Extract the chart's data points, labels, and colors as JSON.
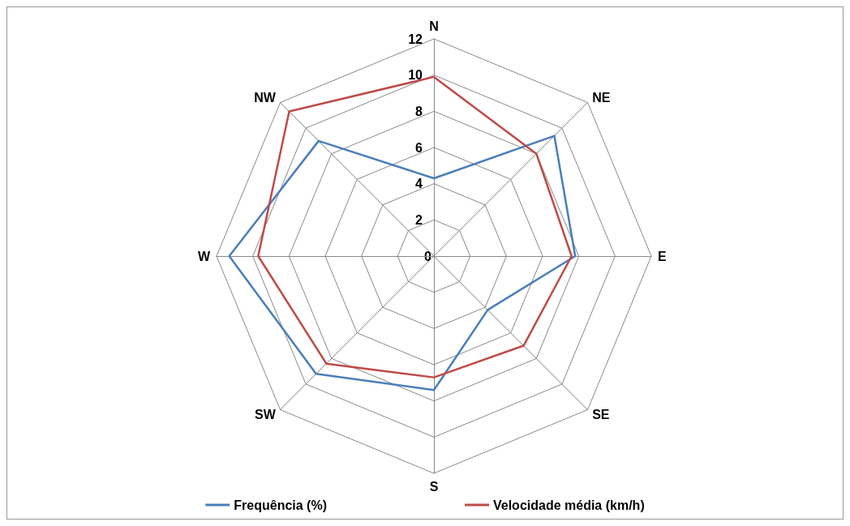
{
  "chart_data": {
    "type": "radar",
    "categories": [
      "N",
      "NE",
      "E",
      "SE",
      "S",
      "SW",
      "W",
      "NW"
    ],
    "series": [
      {
        "name": "Frequência (%)",
        "color": "#4a7ebb",
        "values": [
          4.3,
          9.4,
          7.8,
          4.2,
          7.4,
          9.2,
          11.3,
          9.0
        ]
      },
      {
        "name": "Velocidade média (km/h)",
        "color": "#be4b48",
        "values": [
          9.9,
          8.0,
          7.6,
          7.0,
          6.7,
          8.4,
          9.7,
          11.3
        ]
      }
    ],
    "ylim": [
      0,
      12
    ],
    "yticks": [
      0,
      2,
      4,
      6,
      8,
      10,
      12
    ],
    "grid": true,
    "legend": "bottom",
    "marker": "none"
  }
}
